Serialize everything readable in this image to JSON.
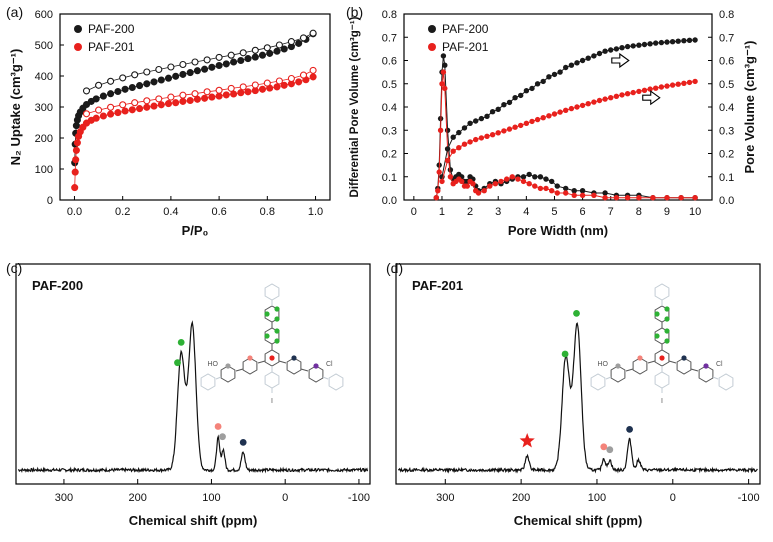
{
  "colors": {
    "black": "#1a1a1a",
    "red": "#e8211d"
  },
  "molecule": {
    "ring": "#555555",
    "faded": "#c3ccd4",
    "labels": {
      "left": "HO",
      "right": "Cl",
      "bottom": "I"
    },
    "dots": {
      "green": "#2eb135",
      "red": "#e8211d",
      "pink": "#f4837a",
      "navy": "#1f3250",
      "purple": "#7030a0",
      "gray": "#9e9e9e"
    }
  },
  "chart_data": [
    {
      "id": "a",
      "tag": "(a)",
      "type": "scatter",
      "xlabel": "P/P₀",
      "ylabel": "N₂ Uptake (cm³g⁻¹)",
      "xlim": [
        -0.06,
        1.06
      ],
      "ylim": [
        0,
        600
      ],
      "xticks": [
        0,
        0.2,
        0.4,
        0.6,
        0.8,
        1.0
      ],
      "xtick_labels": [
        "0.0",
        "0.2",
        "0.4",
        "0.6",
        "0.8",
        "1.0"
      ],
      "yticks": [
        0,
        100,
        200,
        300,
        400,
        500,
        600
      ],
      "legend": [
        {
          "label": "PAF-200",
          "color": "#1a1a1a"
        },
        {
          "label": "PAF-201",
          "color": "#e8211d"
        }
      ],
      "series": [
        {
          "name": "PAF-200-adsorption",
          "color": "#1a1a1a",
          "marker": "filled",
          "x": [
            0.001,
            0.003,
            0.005,
            0.008,
            0.012,
            0.017,
            0.024,
            0.035,
            0.05,
            0.07,
            0.09,
            0.12,
            0.15,
            0.18,
            0.21,
            0.24,
            0.27,
            0.3,
            0.33,
            0.36,
            0.39,
            0.42,
            0.45,
            0.48,
            0.51,
            0.54,
            0.57,
            0.6,
            0.63,
            0.66,
            0.69,
            0.72,
            0.75,
            0.78,
            0.81,
            0.84,
            0.87,
            0.9,
            0.93,
            0.96,
            0.99
          ],
          "y": [
            120,
            180,
            215,
            240,
            258,
            272,
            284,
            296,
            308,
            318,
            326,
            335,
            343,
            350,
            357,
            363,
            369,
            375,
            381,
            387,
            393,
            399,
            405,
            411,
            417,
            422,
            428,
            434,
            439,
            445,
            450,
            456,
            461,
            467,
            473,
            480,
            487,
            495,
            505,
            518,
            536
          ]
        },
        {
          "name": "PAF-200-desorption",
          "color": "#1a1a1a",
          "marker": "open",
          "x": [
            0.05,
            0.1,
            0.15,
            0.2,
            0.25,
            0.3,
            0.35,
            0.4,
            0.45,
            0.5,
            0.55,
            0.6,
            0.65,
            0.7,
            0.75,
            0.8,
            0.85,
            0.9,
            0.95,
            0.99
          ],
          "y": [
            352,
            370,
            383,
            394,
            404,
            413,
            421,
            429,
            437,
            445,
            452,
            460,
            467,
            475,
            483,
            491,
            500,
            511,
            523,
            538
          ]
        },
        {
          "name": "PAF-201-adsorption",
          "color": "#e8211d",
          "marker": "filled",
          "x": [
            0.001,
            0.003,
            0.005,
            0.008,
            0.012,
            0.017,
            0.024,
            0.035,
            0.05,
            0.07,
            0.09,
            0.12,
            0.15,
            0.18,
            0.21,
            0.24,
            0.27,
            0.3,
            0.33,
            0.36,
            0.39,
            0.42,
            0.45,
            0.48,
            0.51,
            0.54,
            0.57,
            0.6,
            0.63,
            0.66,
            0.69,
            0.72,
            0.75,
            0.78,
            0.81,
            0.84,
            0.87,
            0.9,
            0.93,
            0.96,
            0.99
          ],
          "y": [
            40,
            90,
            130,
            160,
            185,
            205,
            220,
            235,
            248,
            257,
            264,
            271,
            277,
            282,
            287,
            291,
            295,
            299,
            303,
            307,
            311,
            314,
            318,
            321,
            325,
            328,
            332,
            335,
            339,
            342,
            346,
            349,
            353,
            357,
            361,
            365,
            370,
            375,
            381,
            388,
            397
          ]
        },
        {
          "name": "PAF-201-desorption",
          "color": "#e8211d",
          "marker": "open",
          "x": [
            0.05,
            0.1,
            0.15,
            0.2,
            0.25,
            0.3,
            0.35,
            0.4,
            0.45,
            0.5,
            0.55,
            0.6,
            0.65,
            0.7,
            0.75,
            0.8,
            0.85,
            0.9,
            0.95,
            0.99
          ],
          "y": [
            278,
            290,
            299,
            307,
            314,
            320,
            326,
            332,
            338,
            343,
            349,
            354,
            360,
            365,
            371,
            377,
            384,
            392,
            403,
            418
          ]
        }
      ]
    },
    {
      "id": "b",
      "tag": "(b)",
      "type": "line-scatter-dual-axis",
      "xlabel": "Pore Width (nm)",
      "ylabel_left": "Differential Pore Volume (cm³g⁻¹)",
      "ylabel_right": "Pore Volume (cm³g⁻¹)",
      "xlim": [
        -0.35,
        10.6
      ],
      "ylim": [
        0,
        0.8
      ],
      "xticks": [
        0,
        1,
        2,
        3,
        4,
        5,
        6,
        7,
        8,
        9,
        10
      ],
      "yticks": [
        0,
        0.1,
        0.2,
        0.3,
        0.4,
        0.5,
        0.6,
        0.7,
        0.8
      ],
      "ytick_labels": [
        "0.0",
        "0.1",
        "0.2",
        "0.3",
        "0.4",
        "0.5",
        "0.6",
        "0.7",
        "0.8"
      ],
      "legend": [
        {
          "label": "PAF-200",
          "color": "#1a1a1a"
        },
        {
          "label": "PAF-201",
          "color": "#e8211d"
        }
      ],
      "arrows": [
        {
          "x": 7.5,
          "y": 0.6
        },
        {
          "x": 8.6,
          "y": 0.44
        }
      ],
      "series": [
        {
          "name": "PAF-200-differential",
          "axis": "left",
          "color": "#1a1a1a",
          "marker": "filled",
          "x": [
            0.8,
            0.85,
            0.9,
            0.95,
            1.0,
            1.05,
            1.1,
            1.2,
            1.3,
            1.4,
            1.5,
            1.6,
            1.7,
            1.8,
            1.9,
            2.0,
            2.1,
            2.2,
            2.3,
            2.5,
            2.7,
            2.9,
            3.1,
            3.3,
            3.5,
            3.7,
            3.9,
            4.1,
            4.3,
            4.5,
            4.7,
            4.9,
            5.1,
            5.4,
            5.7,
            6.0,
            6.4,
            6.8,
            7.2,
            7.6,
            8.0,
            8.5,
            9.0,
            9.5,
            10.0
          ],
          "y": [
            0.01,
            0.05,
            0.15,
            0.35,
            0.55,
            0.62,
            0.58,
            0.3,
            0.13,
            0.09,
            0.1,
            0.11,
            0.1,
            0.08,
            0.08,
            0.1,
            0.09,
            0.06,
            0.04,
            0.05,
            0.07,
            0.08,
            0.07,
            0.08,
            0.09,
            0.1,
            0.1,
            0.11,
            0.1,
            0.1,
            0.09,
            0.08,
            0.06,
            0.05,
            0.04,
            0.04,
            0.03,
            0.03,
            0.02,
            0.02,
            0.02,
            0.01,
            0.01,
            0.01,
            0.01
          ]
        },
        {
          "name": "PAF-201-differential",
          "axis": "left",
          "color": "#e8211d",
          "marker": "filled",
          "x": [
            0.8,
            0.85,
            0.9,
            0.95,
            1.0,
            1.05,
            1.1,
            1.2,
            1.3,
            1.4,
            1.5,
            1.6,
            1.7,
            1.8,
            1.9,
            2.0,
            2.1,
            2.2,
            2.3,
            2.5,
            2.7,
            2.9,
            3.1,
            3.3,
            3.5,
            3.7,
            3.9,
            4.1,
            4.3,
            4.5,
            4.7,
            4.9,
            5.1,
            5.4,
            5.7,
            6.0,
            6.4,
            6.8,
            7.2,
            7.6,
            8.0,
            8.5,
            9.0,
            9.5,
            10.0
          ],
          "y": [
            0.01,
            0.04,
            0.12,
            0.3,
            0.5,
            0.55,
            0.48,
            0.22,
            0.1,
            0.07,
            0.08,
            0.09,
            0.08,
            0.06,
            0.06,
            0.08,
            0.07,
            0.04,
            0.03,
            0.04,
            0.06,
            0.07,
            0.08,
            0.09,
            0.1,
            0.09,
            0.08,
            0.07,
            0.06,
            0.05,
            0.05,
            0.04,
            0.03,
            0.03,
            0.02,
            0.02,
            0.02,
            0.01,
            0.01,
            0.01,
            0.01,
            0.01,
            0.01,
            0.01,
            0.01
          ]
        },
        {
          "name": "PAF-200-cumulative",
          "axis": "right",
          "color": "#1a1a1a",
          "marker": "filled",
          "x": [
            1.0,
            1.2,
            1.4,
            1.6,
            1.8,
            2.0,
            2.2,
            2.4,
            2.6,
            2.8,
            3.0,
            3.2,
            3.4,
            3.6,
            3.8,
            4.0,
            4.2,
            4.4,
            4.6,
            4.8,
            5.0,
            5.2,
            5.4,
            5.6,
            5.8,
            6.0,
            6.2,
            6.4,
            6.6,
            6.8,
            7.0,
            7.2,
            7.4,
            7.6,
            7.8,
            8.0,
            8.2,
            8.4,
            8.6,
            8.8,
            9.0,
            9.2,
            9.4,
            9.6,
            9.8,
            10.0
          ],
          "y": [
            0.1,
            0.22,
            0.27,
            0.29,
            0.31,
            0.33,
            0.34,
            0.35,
            0.36,
            0.38,
            0.39,
            0.41,
            0.42,
            0.44,
            0.45,
            0.47,
            0.48,
            0.5,
            0.51,
            0.53,
            0.54,
            0.55,
            0.57,
            0.58,
            0.59,
            0.6,
            0.61,
            0.62,
            0.63,
            0.64,
            0.645,
            0.65,
            0.655,
            0.66,
            0.663,
            0.666,
            0.669,
            0.672,
            0.675,
            0.677,
            0.679,
            0.681,
            0.683,
            0.685,
            0.687,
            0.688
          ]
        },
        {
          "name": "PAF-201-cumulative",
          "axis": "right",
          "color": "#e8211d",
          "marker": "filled",
          "x": [
            1.0,
            1.2,
            1.4,
            1.6,
            1.8,
            2.0,
            2.2,
            2.4,
            2.6,
            2.8,
            3.0,
            3.2,
            3.4,
            3.6,
            3.8,
            4.0,
            4.2,
            4.4,
            4.6,
            4.8,
            5.0,
            5.2,
            5.4,
            5.6,
            5.8,
            6.0,
            6.2,
            6.4,
            6.6,
            6.8,
            7.0,
            7.2,
            7.4,
            7.6,
            7.8,
            8.0,
            8.2,
            8.4,
            8.6,
            8.8,
            9.0,
            9.2,
            9.4,
            9.6,
            9.8,
            10.0
          ],
          "y": [
            0.08,
            0.17,
            0.21,
            0.225,
            0.24,
            0.25,
            0.26,
            0.267,
            0.274,
            0.281,
            0.289,
            0.297,
            0.305,
            0.313,
            0.321,
            0.33,
            0.338,
            0.346,
            0.354,
            0.362,
            0.37,
            0.378,
            0.386,
            0.393,
            0.4,
            0.407,
            0.414,
            0.421,
            0.428,
            0.434,
            0.44,
            0.446,
            0.452,
            0.457,
            0.462,
            0.467,
            0.472,
            0.477,
            0.481,
            0.486,
            0.49,
            0.494,
            0.498,
            0.502,
            0.506,
            0.51
          ]
        }
      ]
    },
    {
      "id": "c",
      "tag": "(c)",
      "type": "line",
      "label": "PAF-200",
      "xlabel": "Chemical shift (ppm)",
      "xlim": [
        365,
        -115
      ],
      "xticks": [
        300,
        200,
        100,
        0,
        -100
      ],
      "peaks": [
        [
          141,
          0.8,
          5
        ],
        [
          126,
          1.0,
          5
        ],
        [
          91,
          0.22,
          2.2
        ],
        [
          84,
          0.14,
          2.2
        ],
        [
          57,
          0.12,
          2.5
        ]
      ],
      "dots": [
        {
          "ppm": 146,
          "h": 0.74,
          "color": "#2eb135"
        },
        {
          "ppm": 141,
          "h": 0.88,
          "color": "#2eb135"
        },
        {
          "ppm": 91,
          "h": 0.3,
          "color": "#f4837a"
        },
        {
          "ppm": 85,
          "h": 0.23,
          "color": "#9e9e9e"
        },
        {
          "ppm": 57,
          "h": 0.19,
          "color": "#1f3250"
        }
      ],
      "star": null
    },
    {
      "id": "d",
      "tag": "(d)",
      "type": "line",
      "label": "PAF-201",
      "xlabel": "Chemical shift (ppm)",
      "xlim": [
        365,
        -115
      ],
      "xticks": [
        300,
        200,
        100,
        0,
        -100
      ],
      "peaks": [
        [
          192,
          0.1,
          2.5
        ],
        [
          141,
          0.78,
          5
        ],
        [
          126,
          1.0,
          5
        ],
        [
          91,
          0.08,
          2.2
        ],
        [
          83,
          0.07,
          2.2
        ],
        [
          57,
          0.21,
          2.8
        ],
        [
          45,
          0.07,
          2.5
        ]
      ],
      "dots": [
        {
          "ppm": 127,
          "h": 1.08,
          "color": "#2eb135"
        },
        {
          "ppm": 142,
          "h": 0.8,
          "color": "#2eb135"
        },
        {
          "ppm": 91,
          "h": 0.16,
          "color": "#f4837a"
        },
        {
          "ppm": 83,
          "h": 0.14,
          "color": "#9e9e9e"
        },
        {
          "ppm": 57,
          "h": 0.28,
          "color": "#1f3250"
        }
      ],
      "star": {
        "ppm": 192,
        "h": 0.2,
        "color": "#e8211d"
      }
    }
  ]
}
